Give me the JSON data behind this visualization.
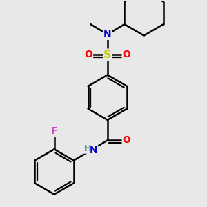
{
  "background_color": "#e8e8e8",
  "atom_colors": {
    "C": "#000000",
    "N": "#0000cc",
    "O": "#ff0000",
    "S": "#cccc00",
    "F": "#cc44cc",
    "H": "#448888"
  },
  "bond_color": "#000000",
  "bond_width": 1.8,
  "figsize": [
    3.0,
    3.0
  ],
  "dpi": 100
}
